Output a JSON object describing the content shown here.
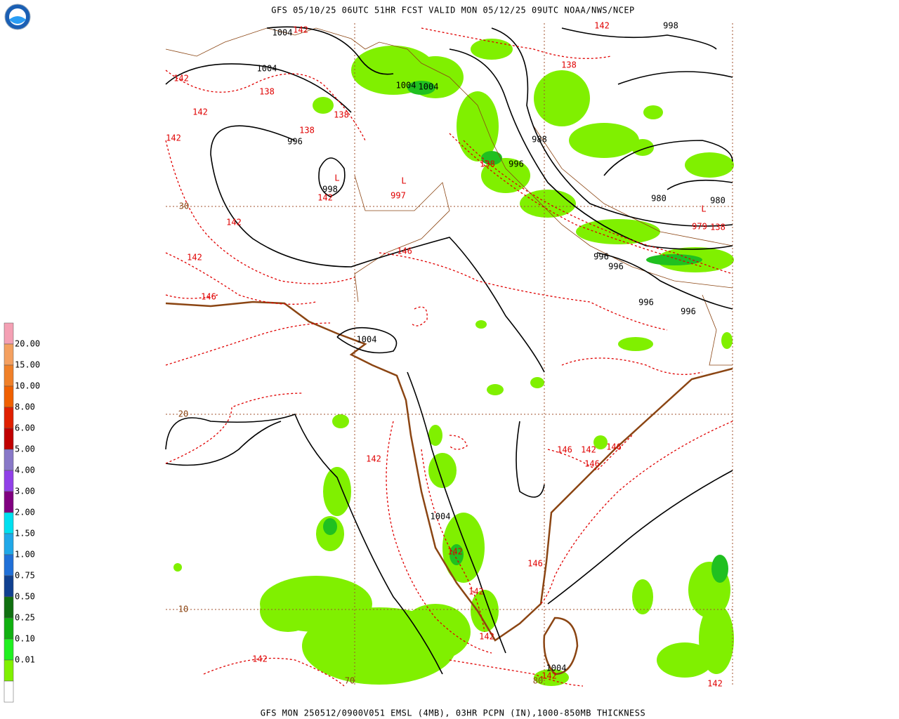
{
  "header": "GFS 05/10/25 06UTC 51HR FCST VALID MON 05/12/25 09UTC NOAA/NWS/NCEP",
  "footer": "GFS MON 250512/0900V051 EMSL (4MB), 03HR PCPN (IN),1000-850MB THICKNESS",
  "legend": {
    "labels": [
      "20.00",
      "15.00",
      "10.00",
      "8.00",
      "6.00",
      "5.00",
      "4.00",
      "3.00",
      "2.00",
      "1.50",
      "1.00",
      "0.75",
      "0.50",
      "0.25",
      "0.10",
      "0.01"
    ],
    "colors": [
      "#f4a0b4",
      "#f4a060",
      "#f08028",
      "#f06000",
      "#e02000",
      "#c00000",
      "#8878c8",
      "#9040e8",
      "#800080",
      "#00e0f0",
      "#20a8e8",
      "#2070d8",
      "#104090",
      "#107010",
      "#10b010",
      "#20f020",
      "#80f000",
      "#ffffff"
    ]
  },
  "grid_labels": {
    "lat": [
      "30",
      "20",
      "10"
    ],
    "lon": [
      "70",
      "80"
    ]
  },
  "pressure_labels": [
    "1004",
    "1004",
    "1004",
    "1004",
    "996",
    "998",
    "988",
    "996",
    "980",
    "980",
    "996",
    "996",
    "996",
    "996",
    "1004",
    "1004",
    "1004",
    "998"
  ],
  "thickness_labels": [
    "142",
    "142",
    "138",
    "142",
    "138",
    "142",
    "138",
    "138",
    "142",
    "142",
    "138",
    "138",
    "142",
    "146",
    "142",
    "146",
    "142",
    "146",
    "142",
    "146",
    "146",
    "142",
    "146",
    "142",
    "142",
    "142",
    "142",
    "142"
  ],
  "lows": {
    "symbols": [
      "L",
      "L",
      "L"
    ],
    "pressures": [
      "997",
      "979"
    ]
  }
}
